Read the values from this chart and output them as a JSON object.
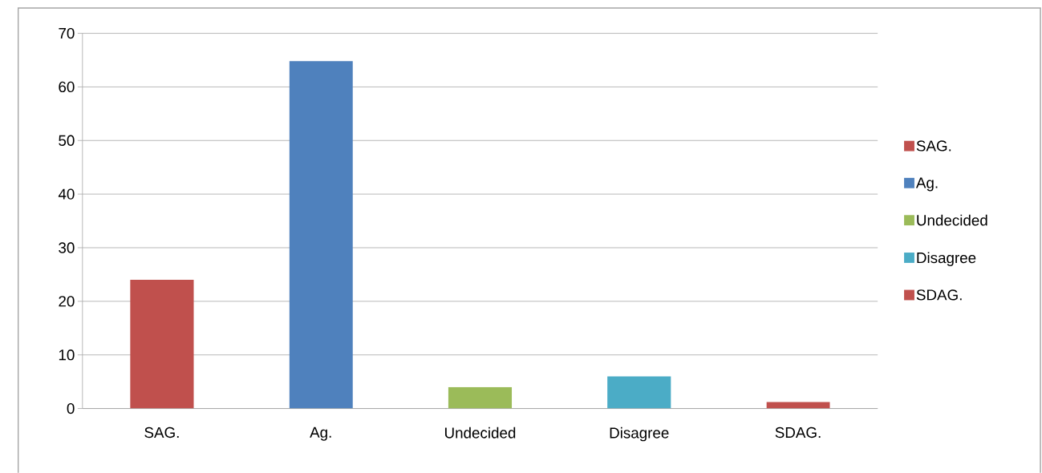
{
  "chart_data": {
    "type": "bar",
    "categories": [
      "SAG.",
      "Ag.",
      "Undecided",
      "Disagree",
      "SDAG."
    ],
    "series": [
      {
        "name": "SAG.",
        "color": "#c0504d",
        "values": [
          24,
          null,
          null,
          null,
          null
        ]
      },
      {
        "name": "Ag.",
        "color": "#4f81bd",
        "values": [
          null,
          64.8,
          null,
          null,
          null
        ]
      },
      {
        "name": "Undecided",
        "color": "#9bbb59",
        "values": [
          null,
          null,
          4,
          null,
          null
        ]
      },
      {
        "name": "Disagree",
        "color": "#4bacc6",
        "values": [
          null,
          null,
          null,
          6,
          null
        ]
      },
      {
        "name": "SDAG.",
        "color": "#c0504d",
        "values": [
          null,
          null,
          null,
          null,
          1.2
        ]
      }
    ],
    "ylim": [
      0,
      70
    ],
    "yticks": [
      0,
      10,
      20,
      30,
      40,
      50,
      60,
      70
    ],
    "grid": "y",
    "legend": "right"
  }
}
